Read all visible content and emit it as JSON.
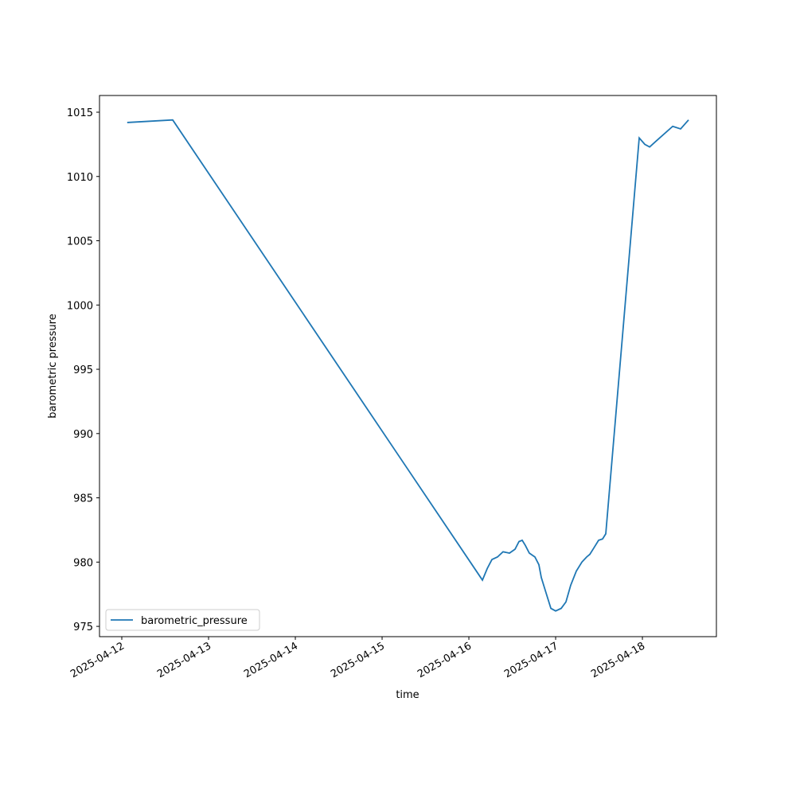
{
  "chart_data": {
    "type": "line",
    "xlabel": "time",
    "ylabel": "barometric pressure",
    "x": [
      "2025-04-12 01:30",
      "2025-04-12 14:05",
      "2025-04-16 03:45",
      "2025-04-16 05:05",
      "2025-04-16 06:23",
      "2025-04-16 07:55",
      "2025-04-16 09:27",
      "2025-04-16 11:14",
      "2025-04-16 12:46",
      "2025-04-16 13:52",
      "2025-04-16 14:45",
      "2025-04-16 15:37",
      "2025-04-16 16:43",
      "2025-04-16 18:16",
      "2025-04-16 19:22",
      "2025-04-16 20:02",
      "2025-04-16 21:08",
      "2025-04-16 22:41",
      "2025-04-17 00:00",
      "2025-04-17 01:32",
      "2025-04-17 02:51",
      "2025-04-17 04:10",
      "2025-04-17 05:43",
      "2025-04-17 07:16",
      "2025-04-17 08:35",
      "2025-04-17 09:27",
      "2025-04-17 10:34",
      "2025-04-17 11:53",
      "2025-04-17 12:59",
      "2025-04-17 13:52",
      "2025-04-17 23:07",
      "2025-04-18 00:40",
      "2025-04-18 02:00",
      "2025-04-18 03:58",
      "2025-04-18 08:23",
      "2025-04-18 10:34",
      "2025-04-18 12:46"
    ],
    "series": [
      {
        "name": "barometric_pressure",
        "color": "#1f77b4",
        "values": [
          1014.2,
          1014.4,
          978.6,
          979.5,
          980.2,
          980.4,
          980.8,
          980.7,
          981.0,
          981.6,
          981.7,
          981.3,
          980.7,
          980.4,
          979.8,
          978.8,
          977.8,
          976.4,
          976.2,
          976.4,
          976.9,
          978.2,
          979.3,
          980.0,
          980.4,
          980.6,
          981.1,
          981.7,
          981.8,
          982.2,
          1013.0,
          1012.5,
          1012.3,
          1012.8,
          1013.9,
          1013.7,
          1014.4
        ]
      }
    ],
    "xlim": [
      "2025-04-11 17:50",
      "2025-04-18 20:28"
    ],
    "xticks": [
      "2025-04-12",
      "2025-04-13",
      "2025-04-14",
      "2025-04-15",
      "2025-04-16",
      "2025-04-17",
      "2025-04-18"
    ],
    "ylim": [
      974.2,
      1016.3
    ],
    "yticks": [
      975,
      980,
      985,
      990,
      995,
      1000,
      1005,
      1010,
      1015
    ],
    "grid": false,
    "legend": "lower left"
  }
}
